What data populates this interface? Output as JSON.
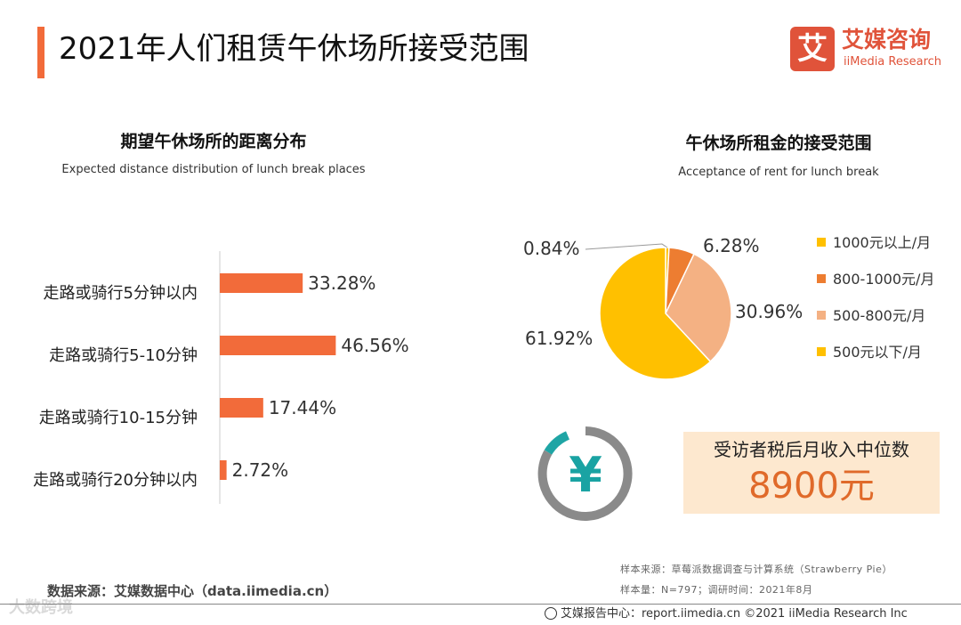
{
  "header": {
    "title": "2021年人们租赁午休场所接受范围"
  },
  "logo": {
    "mark": "艾",
    "cn": "艾媒咨询",
    "en": "iiMedia Research"
  },
  "bar_section": {
    "title": "期望午休场所的距离分布",
    "subtitle": "Expected distance distribution of lunch break places"
  },
  "pie_section": {
    "title": "午休场所租金的接受范围",
    "subtitle": "Acceptance of rent for lunch break"
  },
  "income": {
    "label": "受访者税后月收入中位数",
    "value": "8900元",
    "coin_symbol": "¥"
  },
  "notes": {
    "sample_source": "样本来源：草莓派数据调查与计算系统（Strawberry Pie）",
    "sample_info": "样本量：N=797；调研时间：2021年8月"
  },
  "source": "数据来源：艾媒数据中心（data.iimedia.cn）",
  "watermark": "大数跨境",
  "footer": "艾媒报告中心：report.iimedia.cn ©2021  iiMedia Research Inc",
  "colors": {
    "accent": "#f26b3a",
    "bar": "#f26b3a"
  },
  "chart_data": [
    {
      "type": "bar",
      "orientation": "horizontal",
      "title": "期望午休场所的距离分布",
      "categories": [
        "走路或骑行5分钟以内",
        "走路或骑行5-10分钟",
        "走路或骑行10-15分钟",
        "走路或骑行20分钟以内"
      ],
      "values": [
        33.28,
        46.56,
        17.44,
        2.72
      ],
      "labels": [
        "33.28%",
        "46.56%",
        "17.44%",
        "2.72%"
      ],
      "xlim": [
        0,
        100
      ],
      "unit": "%",
      "color": "#f26b3a"
    },
    {
      "type": "pie",
      "title": "午休场所租金的接受范围",
      "slices": [
        {
          "name": "1000元以上/月",
          "value": 0.84,
          "label": "0.84%",
          "color": "#ffc000"
        },
        {
          "name": "800-1000元/月",
          "value": 6.28,
          "label": "6.28%",
          "color": "#ed7d31"
        },
        {
          "name": "500-800元/月",
          "value": 30.96,
          "label": "30.96%",
          "color": "#f4b183"
        },
        {
          "name": "500元以下/月",
          "value": 61.92,
          "label": "61.92%",
          "color": "#ffc000"
        }
      ],
      "legend_position": "right"
    }
  ]
}
